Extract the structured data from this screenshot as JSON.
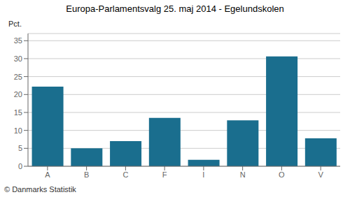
{
  "chart_data": {
    "type": "bar",
    "title": "Europa-Parlamentsvalg 25. maj 2014 - Egelundskolen",
    "ylabel": "Pct.",
    "footer": "© Danmarks Statistik",
    "categories": [
      "A",
      "B",
      "C",
      "F",
      "I",
      "N",
      "O",
      "V"
    ],
    "values": [
      22.2,
      5.0,
      7.0,
      13.5,
      1.8,
      12.8,
      30.6,
      7.8
    ],
    "color": "#1a6e8e",
    "ylim": [
      0,
      37
    ],
    "yticks": [
      0,
      5,
      10,
      15,
      20,
      25,
      30,
      35
    ],
    "grid": true
  }
}
